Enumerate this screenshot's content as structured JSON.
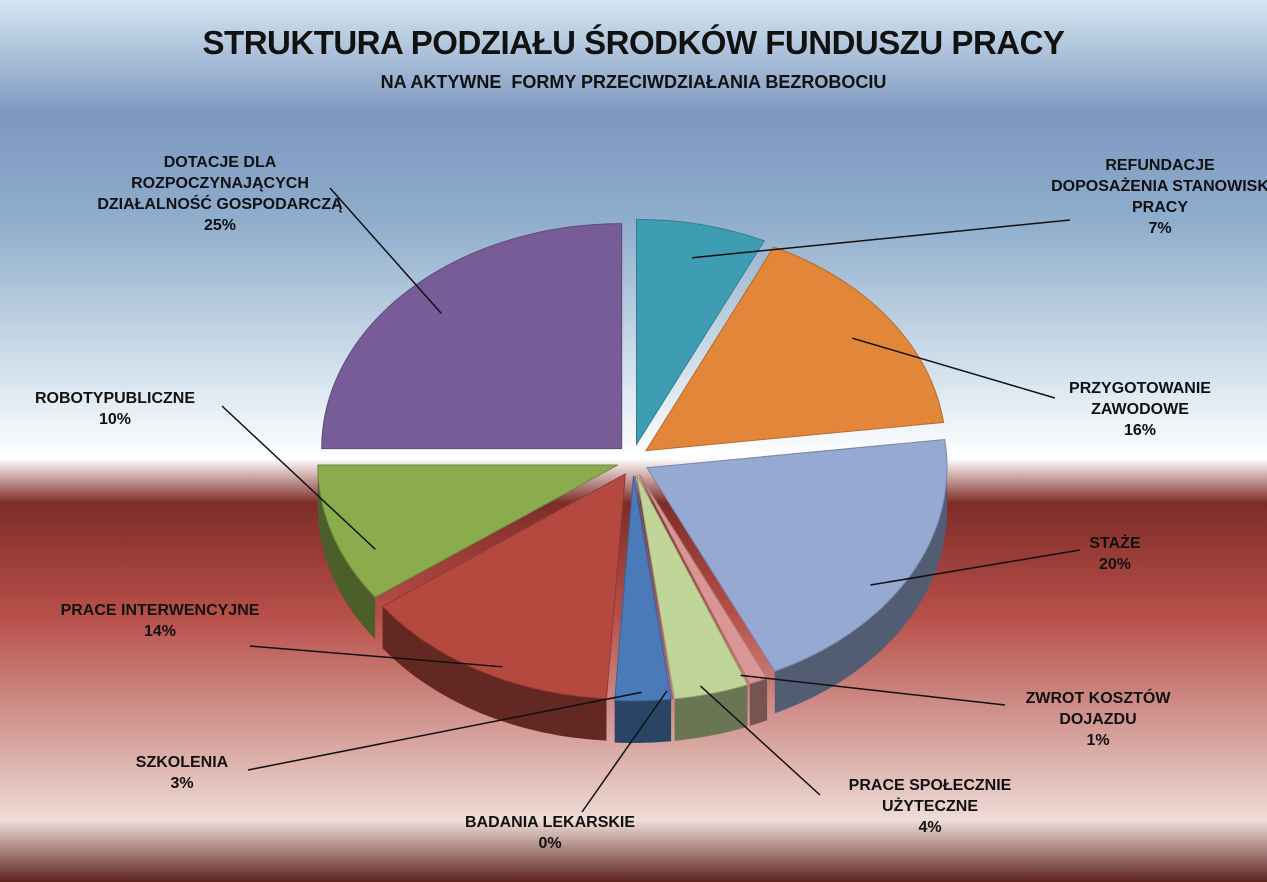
{
  "chart_data": {
    "type": "pie",
    "title": "STRUKTURA PODZIAŁU ŚRODKÓW FUNDUSZU PRACY",
    "subtitle": "NA AKTYWNE  FORMY PRZECIWDZIAŁANIA BEZROBOCIU",
    "categories": [
      "REFUNDACJE DOPOSAŻENIA STANOWISK PRACY",
      "PRZYGOTOWANIE ZAWODOWE",
      "STAŻE",
      "ZWROT KOSZTÓW DOJAZDU",
      "PRACE SPOŁECZNIE UŻYTECZNE",
      "BADANIA LEKARSKIE",
      "SZKOLENIA",
      "PRACE INTERWENCYJNE",
      "ROBOTYPUBLICZNE",
      "DOTACJE DLA ROZPOCZYNAJĄCYCH DZIAŁALNOŚĆ GOSPODARCZĄ"
    ],
    "values": [
      7,
      16,
      20,
      1,
      4,
      0,
      3,
      14,
      10,
      25
    ],
    "value_labels": [
      "7%",
      "16%",
      "20%",
      "1%",
      "4%",
      "0%",
      "3%",
      "14%",
      "10%",
      "25%"
    ],
    "colors": [
      "#3f9db3",
      "#e2873a",
      "#95a9d3",
      "#d99694",
      "#c0d598",
      "#8a7cb0",
      "#4a7bb8",
      "#b5483f",
      "#8aac4c",
      "#775c98"
    ]
  }
}
